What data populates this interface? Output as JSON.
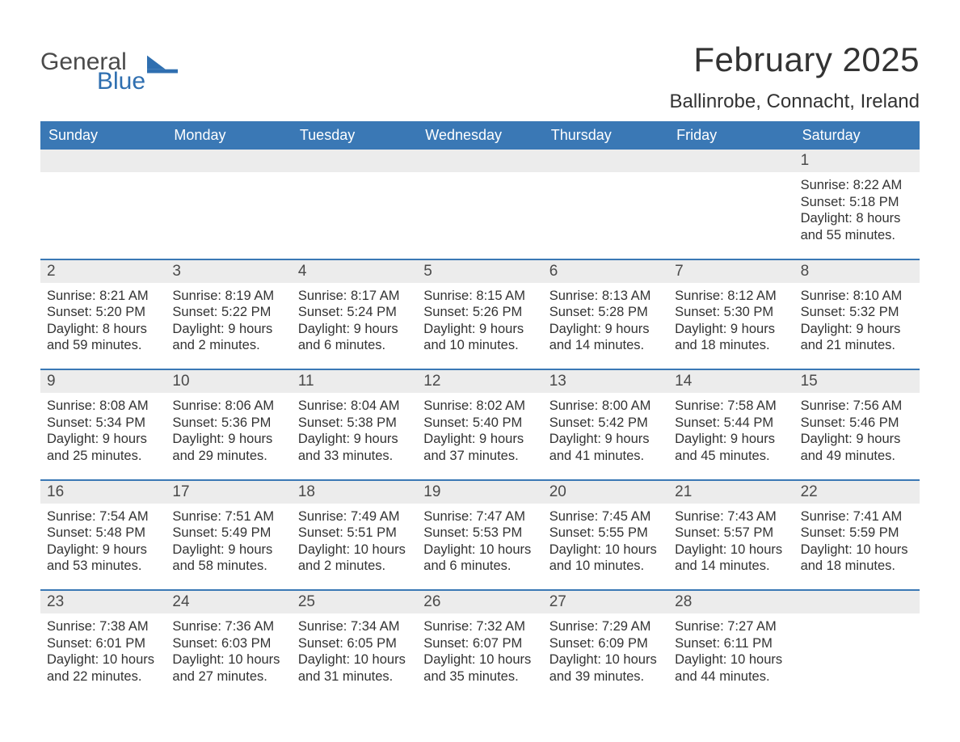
{
  "logo": {
    "text_main": "General",
    "text_sub": "Blue",
    "main_color": "#4a4a4a",
    "sub_color": "#2f6fb0",
    "flag_color": "#2f6fb0"
  },
  "title": "February 2025",
  "location": "Ballinrobe, Connacht, Ireland",
  "colors": {
    "header_bg": "#3a78b5",
    "header_text": "#ffffff",
    "daynum_bg": "#ececec",
    "text": "#333333",
    "separator": "#3a78b5",
    "page_bg": "#ffffff"
  },
  "day_names": [
    "Sunday",
    "Monday",
    "Tuesday",
    "Wednesday",
    "Thursday",
    "Friday",
    "Saturday"
  ],
  "weeks": [
    {
      "nums": [
        "",
        "",
        "",
        "",
        "",
        "",
        "1"
      ],
      "cells": [
        {},
        {},
        {},
        {},
        {},
        {},
        {
          "sunrise": "Sunrise: 8:22 AM",
          "sunset": "Sunset: 5:18 PM",
          "dl1": "Daylight: 8 hours",
          "dl2": "and 55 minutes."
        }
      ]
    },
    {
      "nums": [
        "2",
        "3",
        "4",
        "5",
        "6",
        "7",
        "8"
      ],
      "cells": [
        {
          "sunrise": "Sunrise: 8:21 AM",
          "sunset": "Sunset: 5:20 PM",
          "dl1": "Daylight: 8 hours",
          "dl2": "and 59 minutes."
        },
        {
          "sunrise": "Sunrise: 8:19 AM",
          "sunset": "Sunset: 5:22 PM",
          "dl1": "Daylight: 9 hours",
          "dl2": "and 2 minutes."
        },
        {
          "sunrise": "Sunrise: 8:17 AM",
          "sunset": "Sunset: 5:24 PM",
          "dl1": "Daylight: 9 hours",
          "dl2": "and 6 minutes."
        },
        {
          "sunrise": "Sunrise: 8:15 AM",
          "sunset": "Sunset: 5:26 PM",
          "dl1": "Daylight: 9 hours",
          "dl2": "and 10 minutes."
        },
        {
          "sunrise": "Sunrise: 8:13 AM",
          "sunset": "Sunset: 5:28 PM",
          "dl1": "Daylight: 9 hours",
          "dl2": "and 14 minutes."
        },
        {
          "sunrise": "Sunrise: 8:12 AM",
          "sunset": "Sunset: 5:30 PM",
          "dl1": "Daylight: 9 hours",
          "dl2": "and 18 minutes."
        },
        {
          "sunrise": "Sunrise: 8:10 AM",
          "sunset": "Sunset: 5:32 PM",
          "dl1": "Daylight: 9 hours",
          "dl2": "and 21 minutes."
        }
      ]
    },
    {
      "nums": [
        "9",
        "10",
        "11",
        "12",
        "13",
        "14",
        "15"
      ],
      "cells": [
        {
          "sunrise": "Sunrise: 8:08 AM",
          "sunset": "Sunset: 5:34 PM",
          "dl1": "Daylight: 9 hours",
          "dl2": "and 25 minutes."
        },
        {
          "sunrise": "Sunrise: 8:06 AM",
          "sunset": "Sunset: 5:36 PM",
          "dl1": "Daylight: 9 hours",
          "dl2": "and 29 minutes."
        },
        {
          "sunrise": "Sunrise: 8:04 AM",
          "sunset": "Sunset: 5:38 PM",
          "dl1": "Daylight: 9 hours",
          "dl2": "and 33 minutes."
        },
        {
          "sunrise": "Sunrise: 8:02 AM",
          "sunset": "Sunset: 5:40 PM",
          "dl1": "Daylight: 9 hours",
          "dl2": "and 37 minutes."
        },
        {
          "sunrise": "Sunrise: 8:00 AM",
          "sunset": "Sunset: 5:42 PM",
          "dl1": "Daylight: 9 hours",
          "dl2": "and 41 minutes."
        },
        {
          "sunrise": "Sunrise: 7:58 AM",
          "sunset": "Sunset: 5:44 PM",
          "dl1": "Daylight: 9 hours",
          "dl2": "and 45 minutes."
        },
        {
          "sunrise": "Sunrise: 7:56 AM",
          "sunset": "Sunset: 5:46 PM",
          "dl1": "Daylight: 9 hours",
          "dl2": "and 49 minutes."
        }
      ]
    },
    {
      "nums": [
        "16",
        "17",
        "18",
        "19",
        "20",
        "21",
        "22"
      ],
      "cells": [
        {
          "sunrise": "Sunrise: 7:54 AM",
          "sunset": "Sunset: 5:48 PM",
          "dl1": "Daylight: 9 hours",
          "dl2": "and 53 minutes."
        },
        {
          "sunrise": "Sunrise: 7:51 AM",
          "sunset": "Sunset: 5:49 PM",
          "dl1": "Daylight: 9 hours",
          "dl2": "and 58 minutes."
        },
        {
          "sunrise": "Sunrise: 7:49 AM",
          "sunset": "Sunset: 5:51 PM",
          "dl1": "Daylight: 10 hours",
          "dl2": "and 2 minutes."
        },
        {
          "sunrise": "Sunrise: 7:47 AM",
          "sunset": "Sunset: 5:53 PM",
          "dl1": "Daylight: 10 hours",
          "dl2": "and 6 minutes."
        },
        {
          "sunrise": "Sunrise: 7:45 AM",
          "sunset": "Sunset: 5:55 PM",
          "dl1": "Daylight: 10 hours",
          "dl2": "and 10 minutes."
        },
        {
          "sunrise": "Sunrise: 7:43 AM",
          "sunset": "Sunset: 5:57 PM",
          "dl1": "Daylight: 10 hours",
          "dl2": "and 14 minutes."
        },
        {
          "sunrise": "Sunrise: 7:41 AM",
          "sunset": "Sunset: 5:59 PM",
          "dl1": "Daylight: 10 hours",
          "dl2": "and 18 minutes."
        }
      ]
    },
    {
      "nums": [
        "23",
        "24",
        "25",
        "26",
        "27",
        "28",
        ""
      ],
      "cells": [
        {
          "sunrise": "Sunrise: 7:38 AM",
          "sunset": "Sunset: 6:01 PM",
          "dl1": "Daylight: 10 hours",
          "dl2": "and 22 minutes."
        },
        {
          "sunrise": "Sunrise: 7:36 AM",
          "sunset": "Sunset: 6:03 PM",
          "dl1": "Daylight: 10 hours",
          "dl2": "and 27 minutes."
        },
        {
          "sunrise": "Sunrise: 7:34 AM",
          "sunset": "Sunset: 6:05 PM",
          "dl1": "Daylight: 10 hours",
          "dl2": "and 31 minutes."
        },
        {
          "sunrise": "Sunrise: 7:32 AM",
          "sunset": "Sunset: 6:07 PM",
          "dl1": "Daylight: 10 hours",
          "dl2": "and 35 minutes."
        },
        {
          "sunrise": "Sunrise: 7:29 AM",
          "sunset": "Sunset: 6:09 PM",
          "dl1": "Daylight: 10 hours",
          "dl2": "and 39 minutes."
        },
        {
          "sunrise": "Sunrise: 7:27 AM",
          "sunset": "Sunset: 6:11 PM",
          "dl1": "Daylight: 10 hours",
          "dl2": "and 44 minutes."
        },
        {}
      ]
    }
  ]
}
